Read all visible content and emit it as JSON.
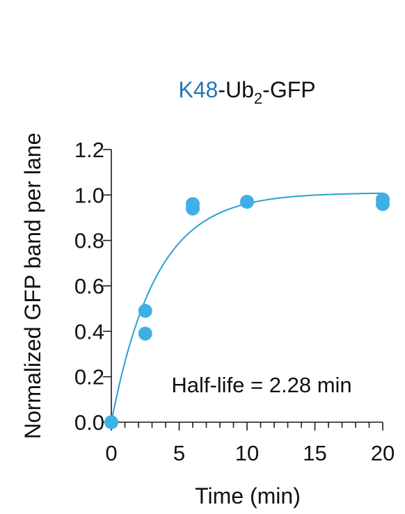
{
  "chart_data": {
    "type": "scatter",
    "title": {
      "prefix": "K48",
      "middle": "-Ub",
      "subscript": "2",
      "suffix": "-GFP"
    },
    "xlabel": "Time (min)",
    "ylabel": "Normalized GFP band per lane",
    "xlim": [
      0,
      20
    ],
    "ylim": [
      0,
      1.2
    ],
    "x_ticks": [
      0,
      5,
      10,
      15,
      20
    ],
    "x_tick_labels": [
      "0",
      "5",
      "10",
      "15",
      "20"
    ],
    "x_minor_step": 1,
    "y_ticks": [
      0,
      0.2,
      0.4,
      0.6,
      0.8,
      1.0,
      1.2
    ],
    "y_tick_labels": [
      "0.0",
      "0.2",
      "0.4",
      "0.6",
      "0.8",
      "1.0",
      "1.2"
    ],
    "series": [
      {
        "points": [
          {
            "x": 0,
            "y": 0.0
          },
          {
            "x": 2.5,
            "y": 0.49
          },
          {
            "x": 2.5,
            "y": 0.39
          },
          {
            "x": 6,
            "y": 0.96
          },
          {
            "x": 6,
            "y": 0.94
          },
          {
            "x": 10,
            "y": 0.97
          },
          {
            "x": 20,
            "y": 0.98
          },
          {
            "x": 20,
            "y": 0.96
          }
        ]
      }
    ],
    "fit": {
      "model": "one-phase association",
      "plateau": 1.01,
      "half_life": 2.28
    },
    "annotation": "Half-life = 2.28 min",
    "grid": false,
    "colors": {
      "accent": "#1f77b4",
      "points": "#3fb0e6",
      "fit": "#2aa0d0",
      "axis": "#1a1a1a"
    }
  }
}
